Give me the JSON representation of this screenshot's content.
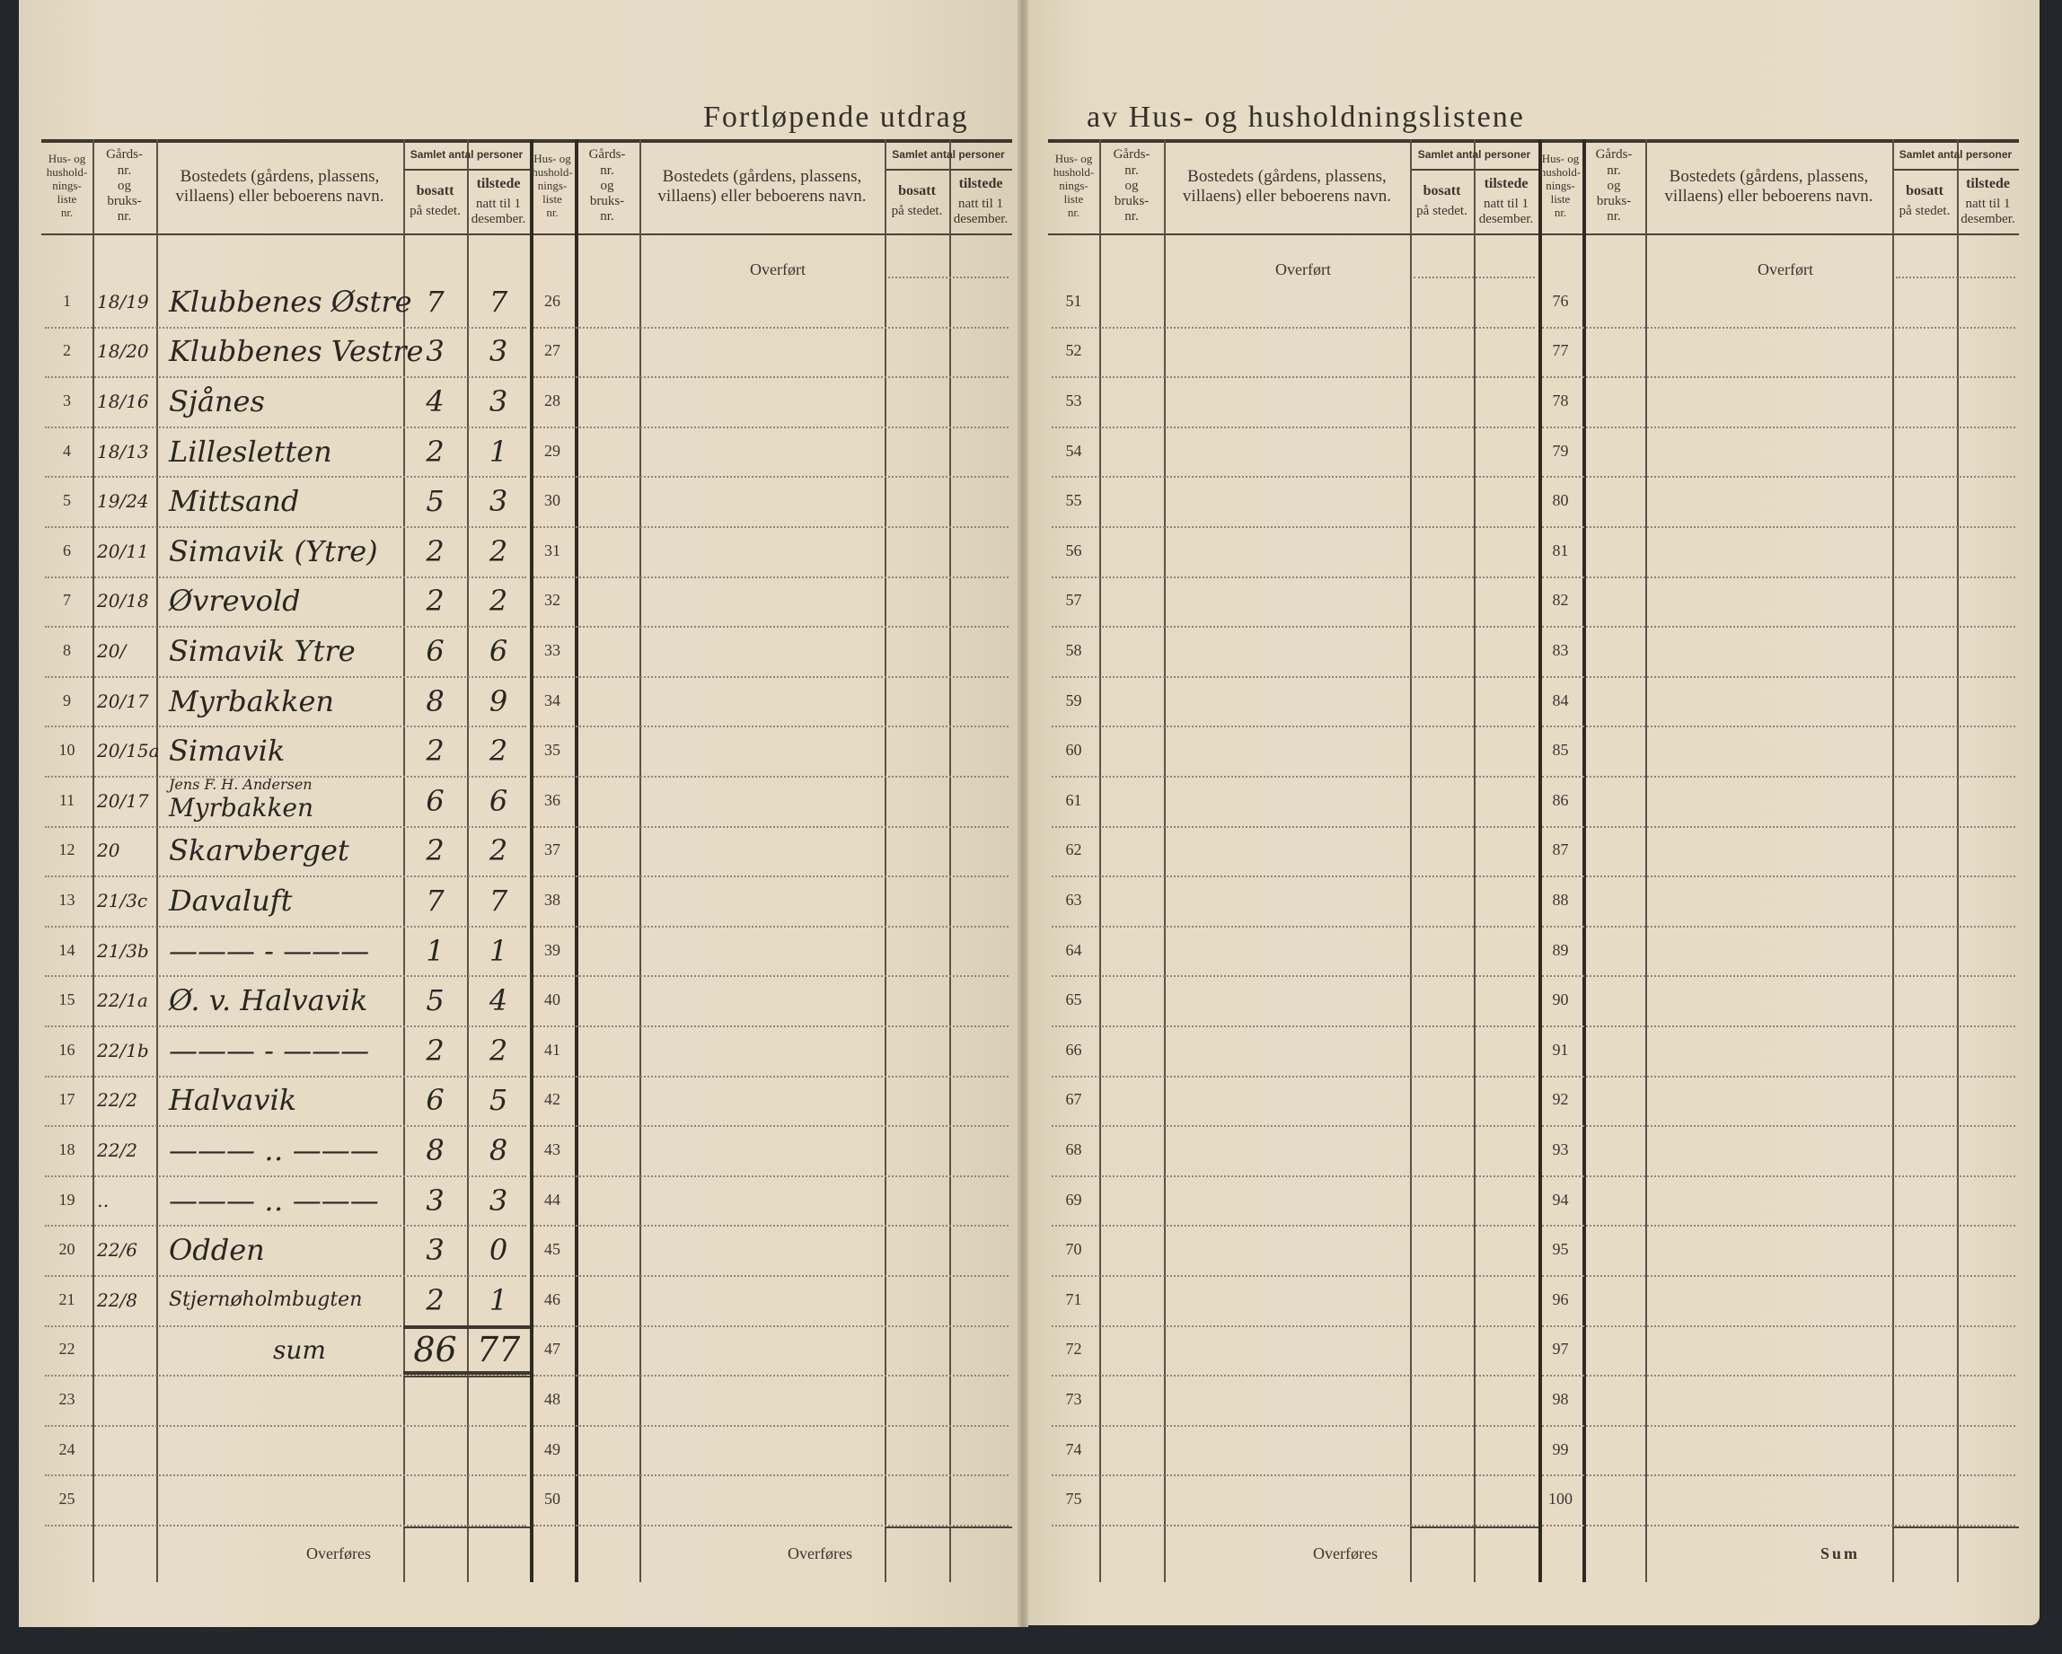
{
  "title_left": "Fortløpende utdrag",
  "title_right": "av Hus- og husholdningslistene",
  "headers": {
    "hus": "Hus- og\nhushold-\nnings-\nliste\nnr.",
    "gards": "Gårds-\nnr.\nog\nbruks-\nnr.",
    "bosted": "Bostedets (gårdens, plassens,\nvillaens) eller beboerens navn.",
    "samlet": "Samlet antal personer",
    "bosatt": "bosatt",
    "bosatt_sub": "på stedet.",
    "tilstede": "tilstede",
    "tilstede_sub": "natt til 1\ndesember."
  },
  "carried_in": "Overført",
  "carried_out": "Overføres",
  "sum_label": "Sum",
  "row_numbers": [
    [
      "1",
      "2",
      "3",
      "4",
      "5",
      "6",
      "7",
      "8",
      "9",
      "10",
      "11",
      "12",
      "13",
      "14",
      "15",
      "16",
      "17",
      "18",
      "19",
      "20",
      "21",
      "22",
      "23",
      "24",
      "25"
    ],
    [
      "26",
      "27",
      "28",
      "29",
      "30",
      "31",
      "32",
      "33",
      "34",
      "35",
      "36",
      "37",
      "38",
      "39",
      "40",
      "41",
      "42",
      "43",
      "44",
      "45",
      "46",
      "47",
      "48",
      "49",
      "50"
    ],
    [
      "51",
      "52",
      "53",
      "54",
      "55",
      "56",
      "57",
      "58",
      "59",
      "60",
      "61",
      "62",
      "63",
      "64",
      "65",
      "66",
      "67",
      "68",
      "69",
      "70",
      "71",
      "72",
      "73",
      "74",
      "75"
    ],
    [
      "76",
      "77",
      "78",
      "79",
      "80",
      "81",
      "82",
      "83",
      "84",
      "85",
      "86",
      "87",
      "88",
      "89",
      "90",
      "91",
      "92",
      "93",
      "94",
      "95",
      "96",
      "97",
      "98",
      "99",
      "100"
    ]
  ],
  "entries": [
    {
      "gards": "18/19",
      "name": "Klubbenes Østre",
      "bosatt": "7",
      "tilstede": "7"
    },
    {
      "gards": "18/20",
      "name": "Klubbenes Vestre",
      "bosatt": "3",
      "tilstede": "3"
    },
    {
      "gards": "18/16",
      "name": "Sjånes",
      "bosatt": "4",
      "tilstede": "3"
    },
    {
      "gards": "18/13",
      "name": "Lillesletten",
      "bosatt": "2",
      "tilstede": "1"
    },
    {
      "gards": "19/24",
      "name": "Mittsand",
      "bosatt": "5",
      "tilstede": "3"
    },
    {
      "gards": "20/11",
      "name": "Simavik (Ytre)",
      "bosatt": "2",
      "tilstede": "2"
    },
    {
      "gards": "20/18",
      "name": "Øvrevold",
      "bosatt": "2",
      "tilstede": "2"
    },
    {
      "gards": "20/",
      "name": "Simavik Ytre",
      "bosatt": "6",
      "tilstede": "6"
    },
    {
      "gards": "20/17",
      "name": "Myrbakken",
      "bosatt": "8",
      "tilstede": "9"
    },
    {
      "gards": "20/15a",
      "name": "Simavik",
      "bosatt": "2",
      "tilstede": "2"
    },
    {
      "gards": "20/17",
      "name": "Myrbakken",
      "note": "Jens F. H. Andersen",
      "bosatt": "6",
      "tilstede": "6"
    },
    {
      "gards": "20",
      "name": "Skarvberget",
      "bosatt": "2",
      "tilstede": "2"
    },
    {
      "gards": "21/3c",
      "name": "Davaluft",
      "bosatt": "7",
      "tilstede": "7"
    },
    {
      "gards": "21/3b",
      "name": "——— - ———",
      "bosatt": "1",
      "tilstede": "1"
    },
    {
      "gards": "22/1a",
      "name": "Ø. v. Halvavik",
      "bosatt": "5",
      "tilstede": "4"
    },
    {
      "gards": "22/1b",
      "name": "——— - ———",
      "bosatt": "2",
      "tilstede": "2"
    },
    {
      "gards": "22/2",
      "name": "Halvavik",
      "bosatt": "6",
      "tilstede": "5"
    },
    {
      "gards": "22/2",
      "name": "——— ‥ ———",
      "bosatt": "8",
      "tilstede": "8"
    },
    {
      "gards": "‥",
      "name": "——— ‥ ———",
      "bosatt": "3",
      "tilstede": "3"
    },
    {
      "gards": "22/6",
      "name": "Odden",
      "bosatt": "3",
      "tilstede": "0"
    },
    {
      "gards": "22/8",
      "name": "Stjernøholmbugten",
      "bosatt": "2",
      "tilstede": "1"
    }
  ],
  "sum": {
    "label": "sum",
    "bosatt": "86",
    "tilstede": "77"
  },
  "colors": {
    "paper": "#e4dac4",
    "ink": "#2a2621",
    "print": "#3b352c",
    "background": "#23262c"
  }
}
